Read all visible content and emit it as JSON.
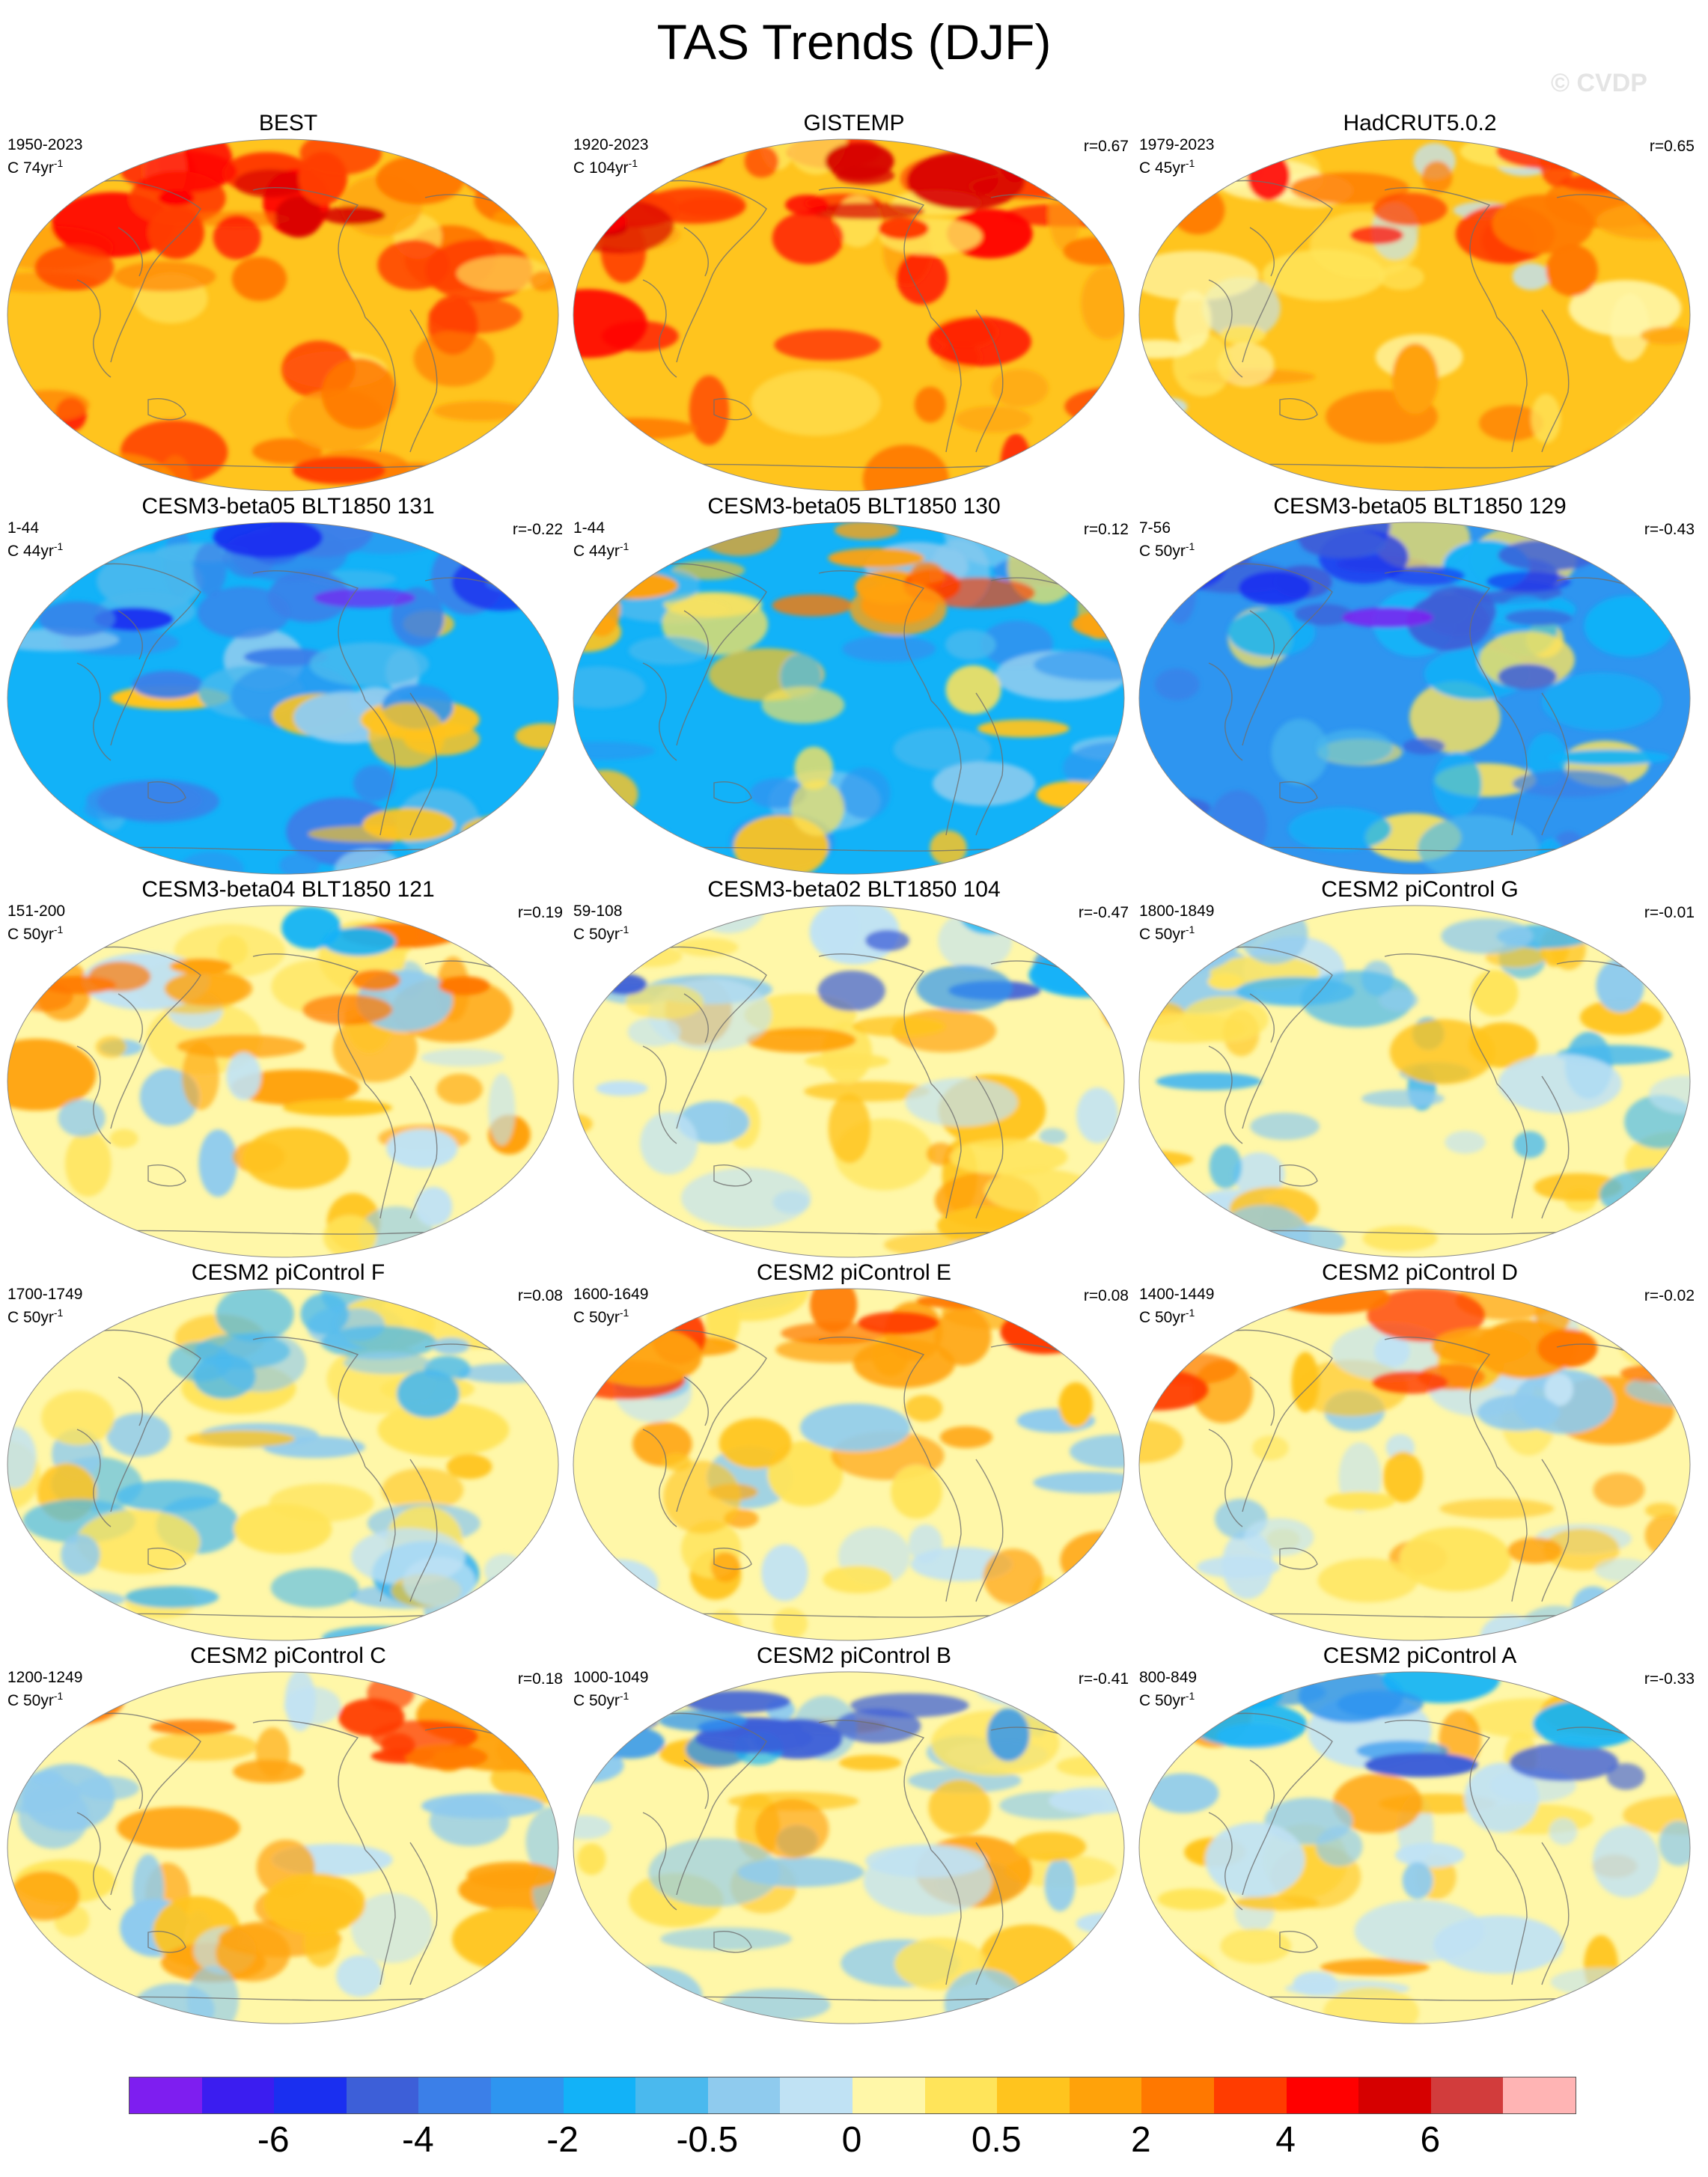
{
  "figure": {
    "title": "TAS Trends (DJF)",
    "watermark": "© CVDP"
  },
  "panels": [
    {
      "title": "BEST",
      "years": "1950-2023",
      "period_prefix": "C 74yr",
      "period_exp": "-1",
      "corr": "",
      "base": "warm_strong",
      "seed": 11
    },
    {
      "title": "GISTEMP",
      "years": "1920-2023",
      "period_prefix": "C 104yr",
      "period_exp": "-1",
      "corr": "r=0.67",
      "base": "warm_strong",
      "seed": 12
    },
    {
      "title": "HadCRUT5.0.2",
      "years": "1979-2023",
      "period_prefix": "C 45yr",
      "period_exp": "-1",
      "corr": "r=0.65",
      "base": "warm",
      "seed": 13
    },
    {
      "title": "CESM3-beta05 BLT1850 131",
      "years": "1-44",
      "period_prefix": "C 44yr",
      "period_exp": "-1",
      "corr": "r=-0.22",
      "base": "cool",
      "seed": 21
    },
    {
      "title": "CESM3-beta05 BLT1850 130",
      "years": "1-44",
      "period_prefix": "C 44yr",
      "period_exp": "-1",
      "corr": "r=0.12",
      "base": "cool_warmnorth",
      "seed": 22
    },
    {
      "title": "CESM3-beta05 BLT1850 129",
      "years": "7-56",
      "period_prefix": "C 50yr",
      "period_exp": "-1",
      "corr": "r=-0.43",
      "base": "cool_strong",
      "seed": 23
    },
    {
      "title": "CESM3-beta04 BLT1850 121",
      "years": "151-200",
      "period_prefix": "C 50yr",
      "period_exp": "-1",
      "corr": "r=0.19",
      "base": "neutral_warm",
      "seed": 31
    },
    {
      "title": "CESM3-beta02 BLT1850 104",
      "years": "59-108",
      "period_prefix": "C 50yr",
      "period_exp": "-1",
      "corr": "r=-0.47",
      "base": "neutral_coolnorth",
      "seed": 32
    },
    {
      "title": "CESM2 piControl G",
      "years": "1800-1849",
      "period_prefix": "C 50yr",
      "period_exp": "-1",
      "corr": "r=-0.01",
      "base": "neutral",
      "seed": 33
    },
    {
      "title": "CESM2 piControl F",
      "years": "1700-1749",
      "period_prefix": "C 50yr",
      "period_exp": "-1",
      "corr": "r=0.08",
      "base": "neutral",
      "seed": 41
    },
    {
      "title": "CESM2 piControl E",
      "years": "1600-1649",
      "period_prefix": "C 50yr",
      "period_exp": "-1",
      "corr": "r=0.08",
      "base": "neutral_warmnorth",
      "seed": 42
    },
    {
      "title": "CESM2 piControl D",
      "years": "1400-1449",
      "period_prefix": "C 50yr",
      "period_exp": "-1",
      "corr": "r=-0.02",
      "base": "neutral_warmnorth",
      "seed": 43
    },
    {
      "title": "CESM2 piControl C",
      "years": "1200-1249",
      "period_prefix": "C 50yr",
      "period_exp": "-1",
      "corr": "r=0.18",
      "base": "neutral_warmnorth",
      "seed": 51
    },
    {
      "title": "CESM2 piControl B",
      "years": "1000-1049",
      "period_prefix": "C 50yr",
      "period_exp": "-1",
      "corr": "r=-0.41",
      "base": "neutral_coolnorth",
      "seed": 52
    },
    {
      "title": "CESM2 piControl A",
      "years": "800-849",
      "period_prefix": "C 50yr",
      "period_exp": "-1",
      "corr": "r=-0.33",
      "base": "neutral_coolnorth",
      "seed": 53
    }
  ],
  "colorbar": {
    "colors": [
      "#7e1ef0",
      "#3b1df0",
      "#1a2ff0",
      "#3d5fd8",
      "#3b7fe8",
      "#2e95f0",
      "#12b2f8",
      "#4ab9ee",
      "#8fcbee",
      "#c0e2f4",
      "#fff7a8",
      "#ffe45a",
      "#ffc41e",
      "#ffa20a",
      "#ff7800",
      "#ff3c00",
      "#ff0000",
      "#d60000",
      "#d23c3c",
      "#ffb4b4"
    ],
    "labels": [
      "-6",
      "-4",
      "-2",
      "-0.5",
      "0",
      "0.5",
      "2",
      "4",
      "6"
    ]
  }
}
